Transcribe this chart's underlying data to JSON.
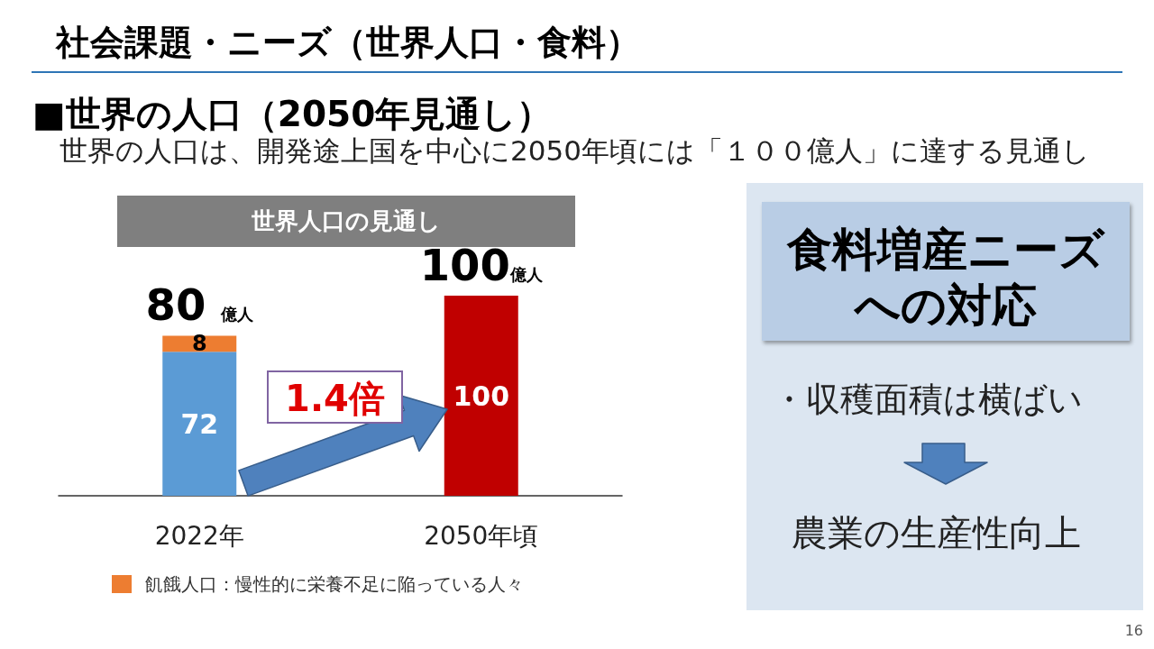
{
  "chart_data": {
    "type": "bar",
    "title": "世界人口の見通し",
    "categories": [
      "2022年",
      "2050年頃"
    ],
    "series": [
      {
        "colors": [
          "#5b9bd5",
          "#c00000"
        ],
        "values": [
          72,
          100
        ]
      },
      {
        "name": "飢餓人口：慢性的に栄養不足に陥っている人々",
        "color": "#ed7d31",
        "values": [
          8,
          null
        ]
      }
    ],
    "stacked": true,
    "data_labels": true,
    "totals": [
      "80 億人",
      "100億人"
    ],
    "ylim": [
      0,
      100
    ],
    "tick_labels": "x",
    "legend": "bottom",
    "annotations": [
      "社会課題・ニーズ（世界人口・食料）",
      "■世界の人口（2050年見通し）",
      "世界の人口は、開発途上国を中心に2050年頃には「１００億人」に達する見通し",
      "1.4倍",
      "食料増産ニーズへの対応",
      "・収穫面積は横ばい",
      "農業の生産性向上",
      "16"
    ]
  }
}
